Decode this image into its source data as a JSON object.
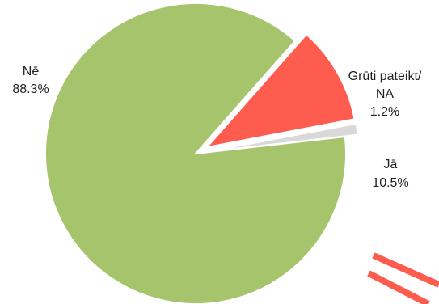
{
  "chart_data": {
    "type": "pie",
    "title": "",
    "slices": [
      {
        "name": "Jā",
        "value": 10.5,
        "value_label": "10.5%",
        "color": "#fd5c4f",
        "exploded": true
      },
      {
        "name": "Nē",
        "value": 88.3,
        "value_label": "88.3%",
        "color": "#a5c46b",
        "exploded": false
      },
      {
        "name_lines": [
          "Grūti pateikt/",
          "NA"
        ],
        "value": 1.2,
        "value_label": "1.2%",
        "color": "#d9d9d9",
        "exploded": true
      }
    ],
    "legend": "none",
    "decoration_color": "#fd5c4f"
  }
}
